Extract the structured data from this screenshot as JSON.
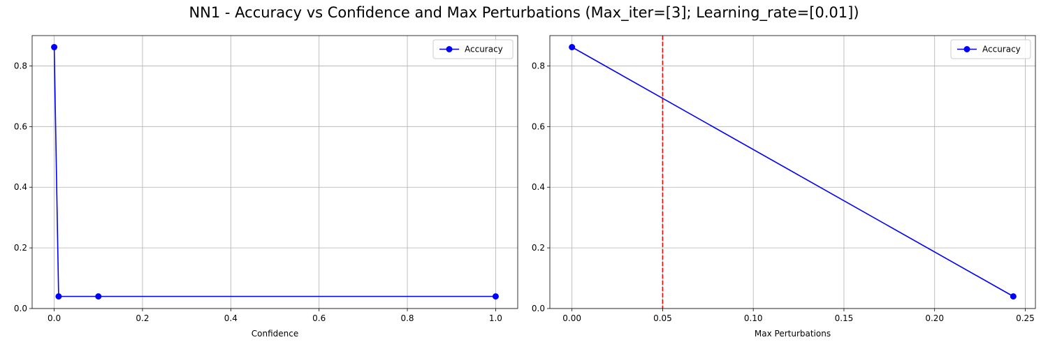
{
  "figure": {
    "title": "NN1 - Accuracy vs Confidence and Max Perturbations (Max_iter=[3]; Learning_rate=[0.01])"
  },
  "colors": {
    "series": "#0000ff",
    "threshold": "#ff0000",
    "grid": "#b0b0b0",
    "legend_border": "#cccccc"
  },
  "chart_data": [
    {
      "type": "line",
      "xlabel": "Confidence",
      "ylabel": "",
      "xlim": [
        -0.05,
        1.05
      ],
      "ylim": [
        0,
        0.9
      ],
      "xticks": [
        0.0,
        0.2,
        0.4,
        0.6,
        0.8,
        1.0
      ],
      "xtick_labels": [
        "0.0",
        "0.2",
        "0.4",
        "0.6",
        "0.8",
        "1.0"
      ],
      "yticks": [
        0.0,
        0.2,
        0.4,
        0.6,
        0.8
      ],
      "ytick_labels": [
        "0.0",
        "0.2",
        "0.4",
        "0.6",
        "0.8"
      ],
      "grid": true,
      "legend_position": "top-right",
      "series": [
        {
          "name": "Accuracy",
          "x": [
            0.0,
            0.01,
            0.1,
            1.0
          ],
          "y": [
            0.862,
            0.04,
            0.04,
            0.04
          ]
        }
      ]
    },
    {
      "type": "line",
      "xlabel": "Max Perturbations",
      "ylabel": "",
      "xlim": [
        -0.0122,
        0.2556
      ],
      "ylim": [
        0,
        0.9
      ],
      "xticks": [
        0.0,
        0.05,
        0.1,
        0.15,
        0.2,
        0.25
      ],
      "xtick_labels": [
        "0.00",
        "0.05",
        "0.10",
        "0.15",
        "0.20",
        "0.25"
      ],
      "yticks": [
        0.0,
        0.2,
        0.4,
        0.6,
        0.8
      ],
      "ytick_labels": [
        "0.0",
        "0.2",
        "0.4",
        "0.6",
        "0.8"
      ],
      "grid": true,
      "legend_position": "top-right",
      "vline": {
        "x": 0.05,
        "style": "dashed",
        "color": "#ff0000"
      },
      "series": [
        {
          "name": "Accuracy",
          "x": [
            0.0,
            0.2434
          ],
          "y": [
            0.862,
            0.04
          ]
        }
      ]
    }
  ]
}
